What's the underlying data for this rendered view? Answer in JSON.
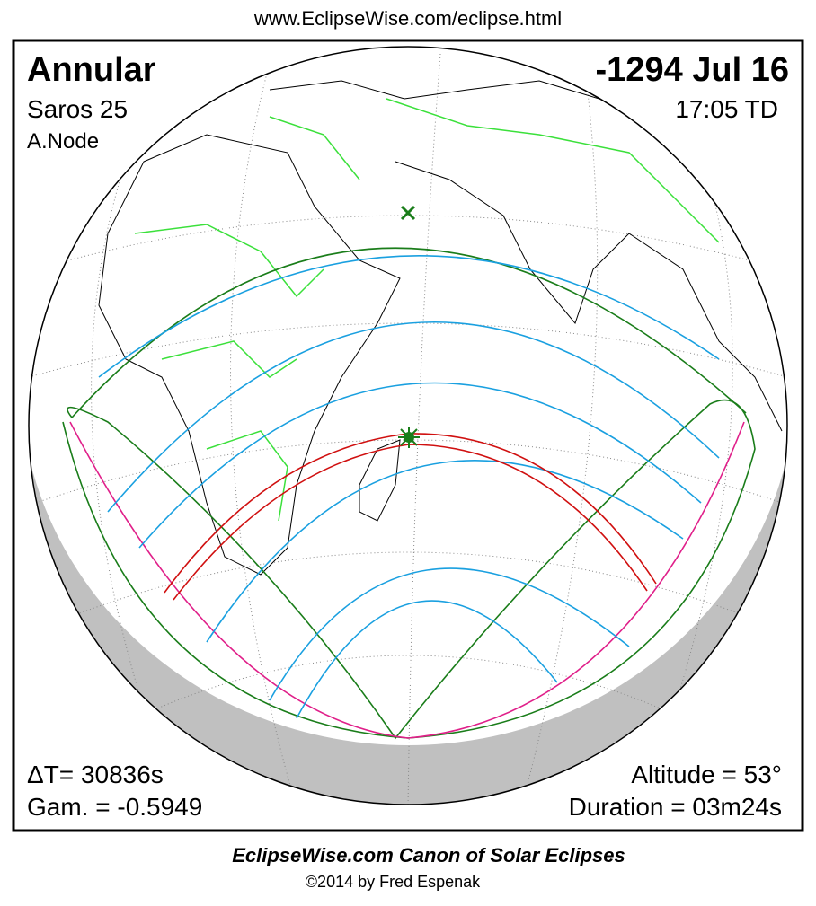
{
  "header": {
    "url": "www.EclipseWise.com/eclipse.html"
  },
  "panel": {
    "eclipse_type": "Annular",
    "saros": "Saros  25",
    "node": "A.Node",
    "date": "-1294 Jul 16",
    "time": "17:05 TD",
    "delta_t": "ΔT=  30836s",
    "gamma": "Gam. = -0.5949",
    "altitude": "Altitude = 53°",
    "duration": "Duration = 03m24s"
  },
  "footer": {
    "title": "EclipseWise.com Canon of Solar Eclipses",
    "credit": "©2014 by Fred Espenak"
  }
}
